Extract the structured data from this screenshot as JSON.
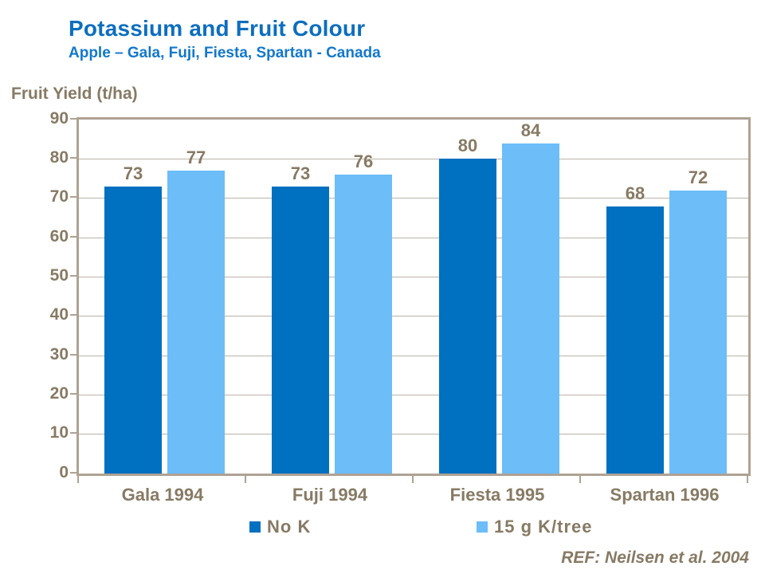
{
  "header": {
    "title": "Potassium and Fruit Colour",
    "subtitle": "Apple – Gala, Fuji, Fiesta, Spartan - Canada"
  },
  "footer": {
    "reference": "REF: Neilsen et al. 2004"
  },
  "chart_data": {
    "type": "bar",
    "title": "Potassium and Fruit Colour",
    "subtitle": "Apple – Gala, Fuji, Fiesta, Spartan - Canada",
    "ylabel": "Fruit Yield (t/ha)",
    "xlabel": "",
    "categories": [
      "Gala 1994",
      "Fuji 1994",
      "Fiesta 1995",
      "Spartan 1996"
    ],
    "series": [
      {
        "name": "No K",
        "color": "#0070C0",
        "values": [
          73,
          73,
          80,
          68
        ]
      },
      {
        "name": "15 g K/tree",
        "color": "#6CBDF8",
        "values": [
          77,
          76,
          84,
          72
        ]
      }
    ],
    "ylim": [
      0,
      90
    ],
    "ytick_interval": 10,
    "yticks": [
      0,
      10,
      20,
      30,
      40,
      50,
      60,
      70,
      80,
      90
    ],
    "grid": true,
    "value_labels": true,
    "legend_position": "bottom"
  },
  "colors": {
    "title": "#0C6EBF",
    "subtitle": "#1278CC",
    "text": "#877A64",
    "axis": "#AFA294",
    "grid": "#BCB3A7",
    "series_dark": "#0070C0",
    "series_light": "#6CBDF8",
    "background": "#FFFFFF"
  }
}
